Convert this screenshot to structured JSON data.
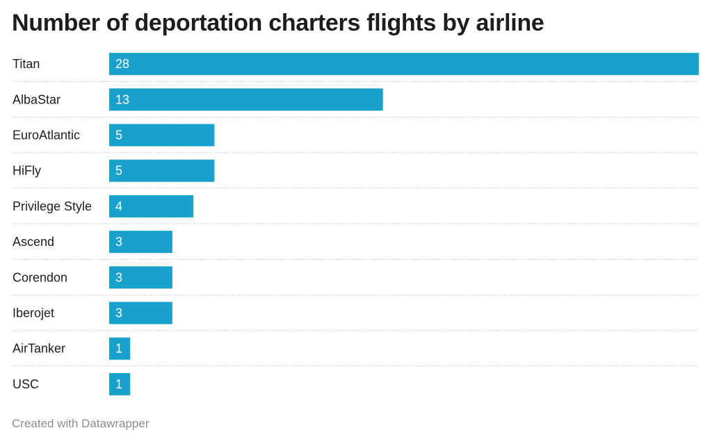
{
  "title": "Number of deportation charters flights by airline",
  "footer": "Created with Datawrapper",
  "colors": {
    "bar": "#18a1cd",
    "label_text": "#ffffff",
    "separator": "#bdbdbd"
  },
  "chart_data": {
    "type": "bar",
    "orientation": "horizontal",
    "categories": [
      "Titan",
      "AlbaStar",
      "EuroAtlantic",
      "HiFly",
      "Privilege Style",
      "Ascend",
      "Corendon",
      "Iberojet",
      "AirTanker",
      "USC"
    ],
    "values": [
      28,
      13,
      5,
      5,
      4,
      3,
      3,
      3,
      1,
      1
    ],
    "data_labels": [
      "28",
      "13",
      "5",
      "5",
      "4",
      "3",
      "3",
      "3",
      "1",
      "1"
    ],
    "xlim": [
      0,
      28
    ],
    "grid": false,
    "legend": "none"
  }
}
